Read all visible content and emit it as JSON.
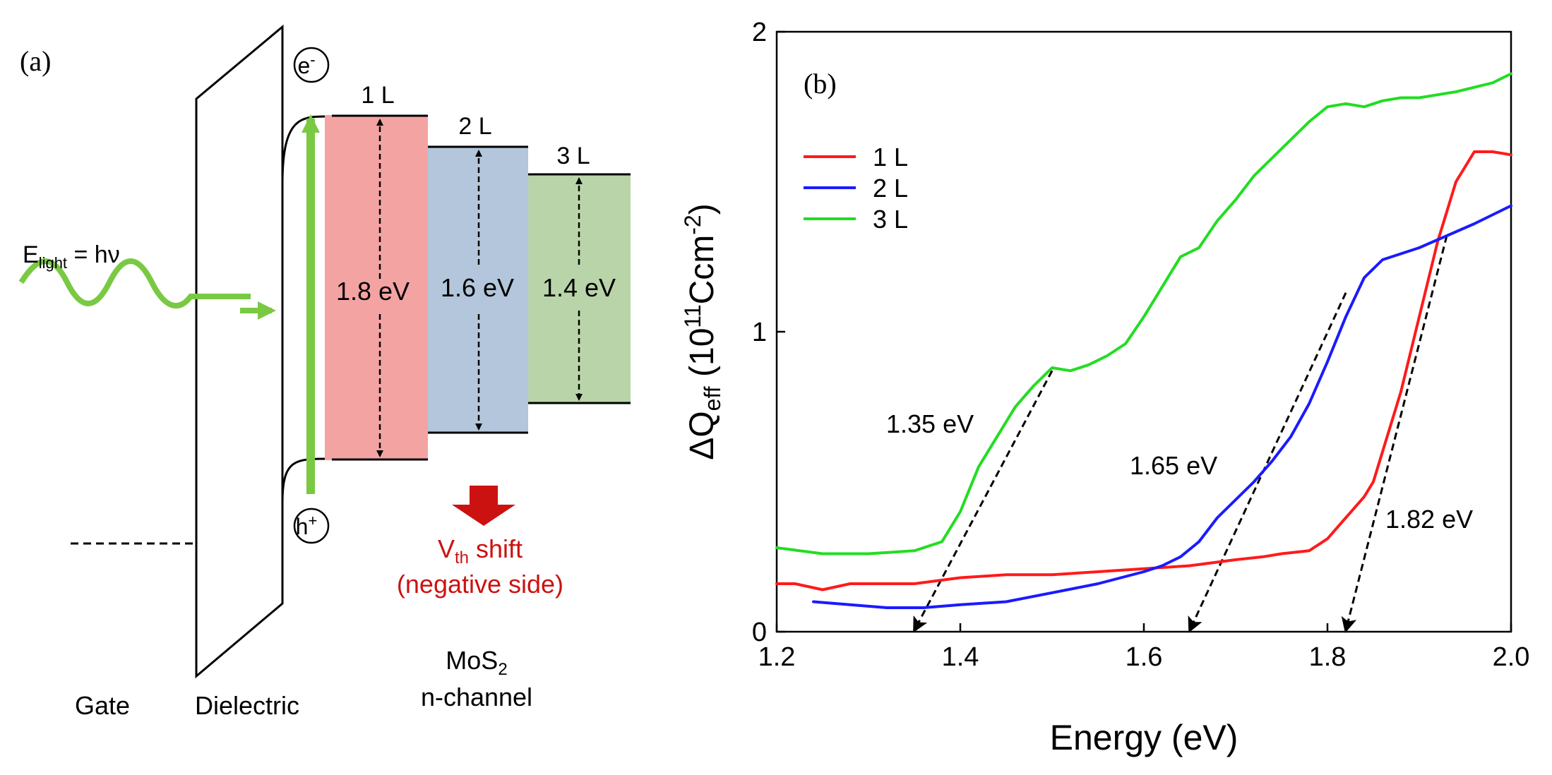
{
  "panel_a": {
    "label": "(a)",
    "electron_label": "e",
    "electron_sup": "-",
    "hole_label": "h",
    "hole_sup": "+",
    "light_label_main": "E",
    "light_label_sub": "light",
    "light_label_rest": " = hν",
    "layers": [
      {
        "name": "1 L",
        "gap": "1.8 eV",
        "color": "#f4a3a3"
      },
      {
        "name": "2 L",
        "gap": "1.6 eV",
        "color": "#b3c6db"
      },
      {
        "name": "3 L",
        "gap": "1.4 eV",
        "color": "#b9d4a9"
      }
    ],
    "vth_main": "V",
    "vth_sub": "th",
    "vth_rest": " shift",
    "vth_line2": "(negative side)",
    "gate_label": "Gate",
    "dielectric_label": "Dielectric",
    "channel_line1_main": "MoS",
    "channel_line1_sub": "2",
    "channel_line2": "n-channel",
    "colors": {
      "light": "#7ac943",
      "shift": "#cc1111",
      "line": "#000000"
    }
  },
  "panel_b": {
    "label": "(b)",
    "annotations": [
      "1.35 eV",
      "1.65 eV",
      "1.82 eV"
    ],
    "ylabel_prefix": "ΔQ",
    "ylabel_sub": "eff",
    "ylabel_open": " (10",
    "ylabel_sup1": "11",
    "ylabel_unit": "Ccm",
    "ylabel_sup2": "-2",
    "ylabel_close": ")"
  },
  "chart_data": {
    "type": "line",
    "title": "",
    "xlabel": "Energy (eV)",
    "ylabel": "ΔQeff (10^11 Ccm^-2)",
    "xlim": [
      1.2,
      2.0
    ],
    "ylim": [
      0,
      2
    ],
    "xticks": [
      "1.2",
      "1.4",
      "1.6",
      "1.8",
      "2.0"
    ],
    "yticks": [
      "0",
      "1",
      "2"
    ],
    "legend_position": "top-left",
    "series": [
      {
        "name": "1 L",
        "color": "#ff1a1a",
        "x": [
          1.2,
          1.22,
          1.25,
          1.28,
          1.3,
          1.35,
          1.4,
          1.45,
          1.5,
          1.55,
          1.6,
          1.65,
          1.7,
          1.73,
          1.75,
          1.78,
          1.8,
          1.82,
          1.84,
          1.85,
          1.86,
          1.88,
          1.9,
          1.92,
          1.94,
          1.96,
          1.98,
          2.0
        ],
        "y": [
          0.16,
          0.16,
          0.14,
          0.16,
          0.16,
          0.16,
          0.18,
          0.19,
          0.19,
          0.2,
          0.21,
          0.22,
          0.24,
          0.25,
          0.26,
          0.27,
          0.31,
          0.38,
          0.45,
          0.5,
          0.6,
          0.8,
          1.05,
          1.3,
          1.5,
          1.6,
          1.6,
          1.59
        ]
      },
      {
        "name": "2 L",
        "color": "#1a1aff",
        "x": [
          1.24,
          1.28,
          1.32,
          1.36,
          1.4,
          1.45,
          1.5,
          1.55,
          1.6,
          1.62,
          1.64,
          1.66,
          1.68,
          1.7,
          1.72,
          1.74,
          1.76,
          1.78,
          1.8,
          1.82,
          1.84,
          1.86,
          1.88,
          1.9,
          1.93,
          1.96,
          2.0
        ],
        "y": [
          0.1,
          0.09,
          0.08,
          0.08,
          0.09,
          0.1,
          0.13,
          0.16,
          0.2,
          0.22,
          0.25,
          0.3,
          0.38,
          0.44,
          0.5,
          0.57,
          0.65,
          0.76,
          0.9,
          1.05,
          1.18,
          1.24,
          1.26,
          1.28,
          1.32,
          1.36,
          1.42
        ]
      },
      {
        "name": "3 L",
        "color": "#22dd22",
        "x": [
          1.2,
          1.25,
          1.3,
          1.35,
          1.38,
          1.4,
          1.42,
          1.44,
          1.46,
          1.48,
          1.5,
          1.52,
          1.54,
          1.56,
          1.58,
          1.6,
          1.62,
          1.64,
          1.66,
          1.68,
          1.7,
          1.72,
          1.74,
          1.76,
          1.78,
          1.8,
          1.82,
          1.84,
          1.86,
          1.88,
          1.9,
          1.94,
          1.98,
          2.0
        ],
        "y": [
          0.28,
          0.26,
          0.26,
          0.27,
          0.3,
          0.4,
          0.55,
          0.65,
          0.75,
          0.82,
          0.88,
          0.87,
          0.89,
          0.92,
          0.96,
          1.05,
          1.15,
          1.25,
          1.28,
          1.37,
          1.44,
          1.52,
          1.58,
          1.64,
          1.7,
          1.75,
          1.76,
          1.75,
          1.77,
          1.78,
          1.78,
          1.8,
          1.83,
          1.86
        ]
      }
    ],
    "arrows": [
      {
        "label": "1.35 eV",
        "from": [
          1.5,
          0.87
        ],
        "to": [
          1.35,
          0.0
        ]
      },
      {
        "label": "1.65 eV",
        "from": [
          1.82,
          1.13
        ],
        "to": [
          1.65,
          0.0
        ]
      },
      {
        "label": "1.82 eV",
        "from": [
          1.93,
          1.32
        ],
        "to": [
          1.82,
          0.0
        ]
      }
    ]
  }
}
